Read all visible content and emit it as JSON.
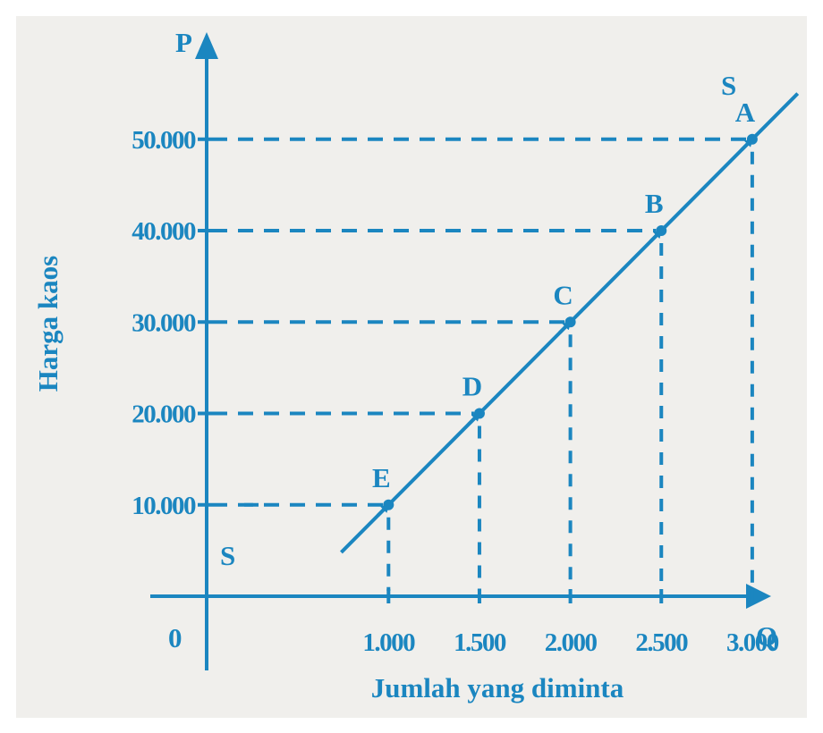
{
  "chart_data": {
    "type": "line",
    "ylabel": "Harga kaos",
    "xlabel": "Jumlah yang diminta",
    "y_axis_symbol": "P",
    "x_axis_symbol": "Q",
    "origin_label": "0",
    "curve_label": "S",
    "x_tick_labels": [
      "1.000",
      "1.500",
      "2.000",
      "2.500",
      "3.000"
    ],
    "y_tick_labels": [
      "10.000",
      "20.000",
      "30.000",
      "40.000",
      "50.000"
    ],
    "points": [
      {
        "label": "E",
        "x": 1000,
        "y": 10000
      },
      {
        "label": "D",
        "x": 1500,
        "y": 20000
      },
      {
        "label": "C",
        "x": 2000,
        "y": 30000
      },
      {
        "label": "B",
        "x": 2500,
        "y": 40000
      },
      {
        "label": "A",
        "x": 3000,
        "y": 50000
      }
    ],
    "xlim": [
      0,
      3600
    ],
    "ylim": [
      0,
      60000
    ],
    "color": "#1b86c0"
  }
}
